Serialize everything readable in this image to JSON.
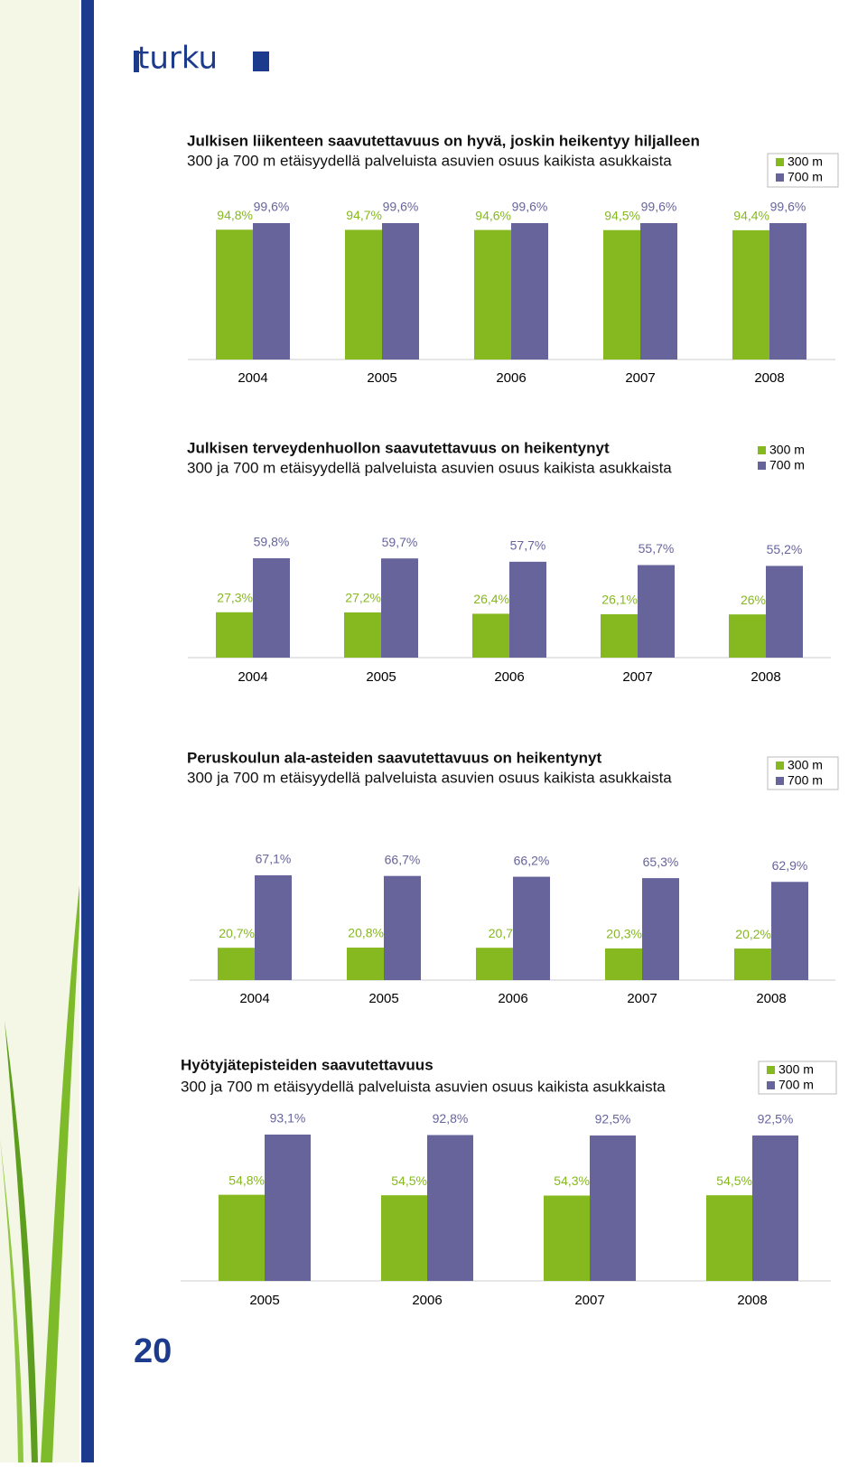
{
  "logo": "turku",
  "page_number": "20",
  "chart_data": [
    {
      "type": "bar",
      "title": "Julkisen liikenteen saavutettavuus on hyvä, joskin heikentyy hiljalleen",
      "subtitle": "300 ja 700 m etäisyydellä palveluista asuvien osuus kaikista asukkaista",
      "categories": [
        "2004",
        "2005",
        "2006",
        "2007",
        "2008"
      ],
      "series": [
        {
          "name": "300 m",
          "color": "#86b81f",
          "values": [
            94.8,
            94.7,
            94.6,
            94.5,
            94.4
          ],
          "value_labels": [
            "94,8%",
            "94,7%",
            "94,6%",
            "94,5%",
            "94,4%"
          ]
        },
        {
          "name": "700 m",
          "color": "#67649c",
          "values": [
            99.6,
            99.6,
            99.6,
            99.6,
            99.6
          ],
          "value_labels": [
            "99,6%",
            "99,6%",
            "99,6%",
            "99,6%",
            "99,6%"
          ]
        }
      ]
    },
    {
      "type": "bar",
      "title": "Julkisen terveydenhuollon saavutettavuus on heikentynyt",
      "subtitle": "300 ja 700 m etäisyydellä palveluista asuvien osuus kaikista asukkaista",
      "categories": [
        "2004",
        "2005",
        "2006",
        "2007",
        "2008"
      ],
      "series": [
        {
          "name": "300 m",
          "color": "#86b81f",
          "values": [
            27.3,
            27.2,
            26.4,
            26.1,
            26
          ],
          "value_labels": [
            "27,3%",
            "27,2%",
            "26,4%",
            "26,1%",
            "26%"
          ]
        },
        {
          "name": "700 m",
          "color": "#67649c",
          "values": [
            59.8,
            59.7,
            57.7,
            55.7,
            55.2
          ],
          "value_labels": [
            "59,8%",
            "59,7%",
            "57,7%",
            "55,7%",
            "55,2%"
          ]
        }
      ]
    },
    {
      "type": "bar",
      "title": "Peruskoulun ala-asteiden saavutettavuus on heikentynyt",
      "subtitle": "300 ja 700 m etäisyydellä palveluista asuvien osuus kaikista asukkaista",
      "categories": [
        "2004",
        "2005",
        "2006",
        "2007",
        "2008"
      ],
      "series": [
        {
          "name": "300 m",
          "color": "#86b81f",
          "values": [
            20.7,
            20.8,
            20.7,
            20.3,
            20.2
          ],
          "value_labels": [
            "20,7%",
            "20,8%",
            "20,7",
            "20,3%",
            "20,2%"
          ]
        },
        {
          "name": "700 m",
          "color": "#67649c",
          "values": [
            67.1,
            66.7,
            66.2,
            65.3,
            62.9
          ],
          "value_labels": [
            "67,1%",
            "66,7%",
            "66,2%",
            "65,3%",
            "62,9%"
          ]
        }
      ]
    },
    {
      "type": "bar",
      "title": "Hyötyjätepisteiden saavutettavuus",
      "subtitle": "300 ja 700 m etäisyydellä palveluista asuvien osuus kaikista asukkaista",
      "categories": [
        "2005",
        "2006",
        "2007",
        "2008"
      ],
      "series": [
        {
          "name": "300 m",
          "color": "#86b81f",
          "values": [
            54.8,
            54.5,
            54.3,
            54.5
          ],
          "value_labels": [
            "54,8%",
            "54,5%",
            "54,3%",
            "54,5%"
          ]
        },
        {
          "name": "700 m",
          "color": "#67649c",
          "values": [
            93.1,
            92.8,
            92.5,
            92.5
          ],
          "value_labels": [
            "93,1%",
            "92,8%",
            "92,5%",
            "92,5%"
          ]
        }
      ]
    }
  ]
}
